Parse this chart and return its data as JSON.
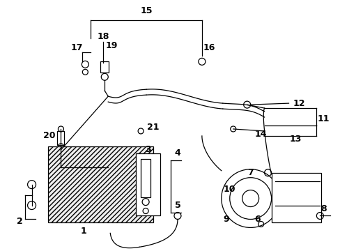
{
  "bg_color": "#ffffff",
  "line_color": "#000000",
  "label_color": "#000000",
  "fig_width": 4.89,
  "fig_height": 3.6,
  "dpi": 100
}
